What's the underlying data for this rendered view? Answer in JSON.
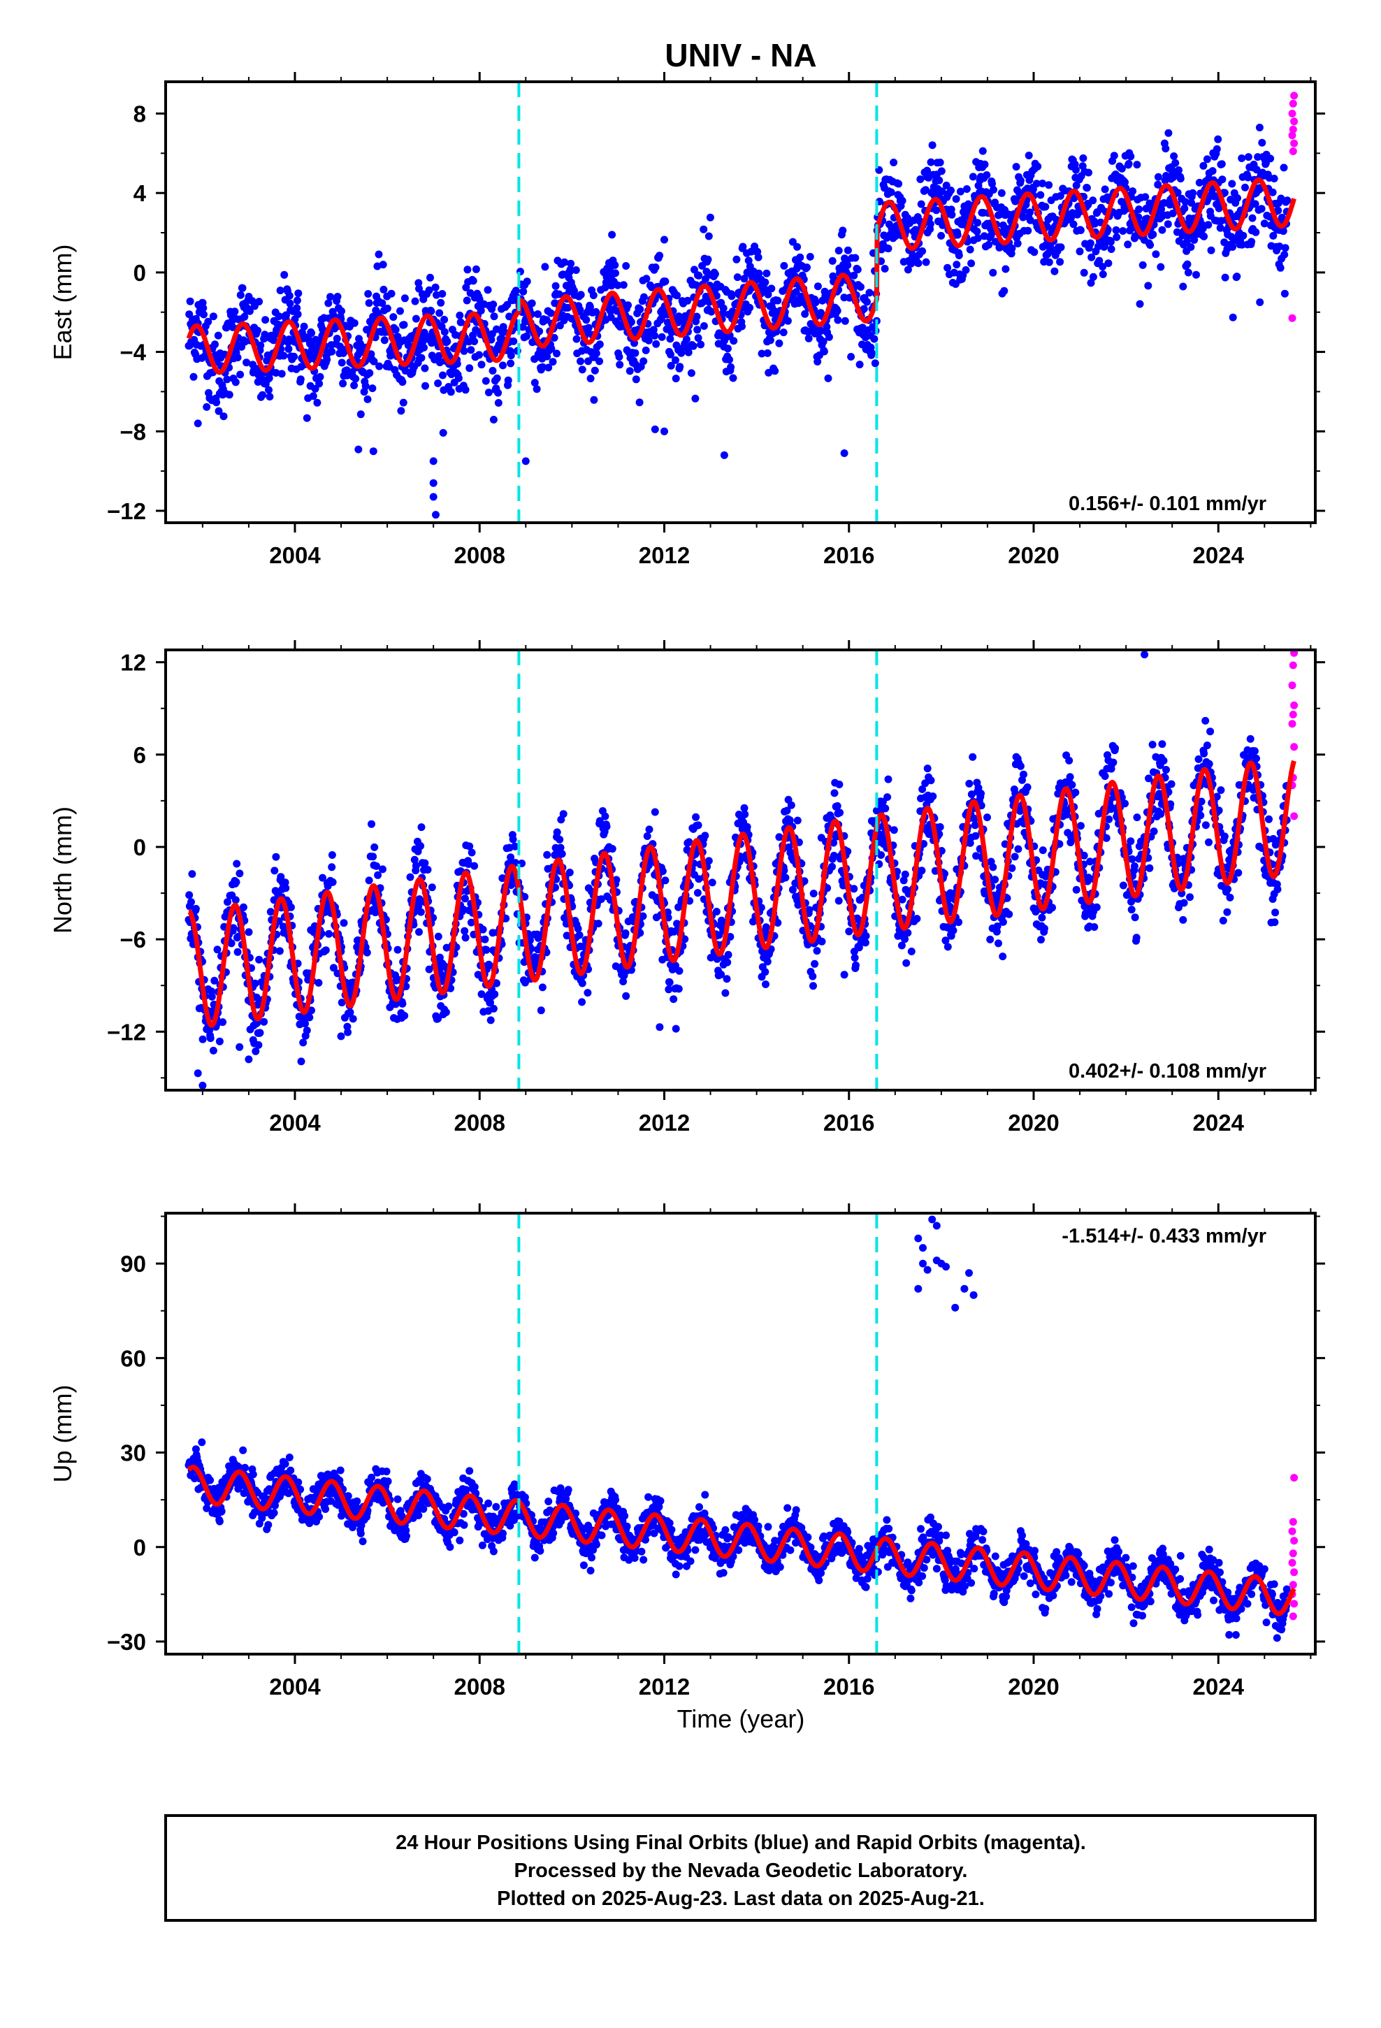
{
  "chart_data": {
    "title": "UNIV - NA",
    "xlabel": "Time (year)",
    "x_ticks": [
      2004,
      2008,
      2012,
      2016,
      2020,
      2024
    ],
    "xlim": [
      2001.2,
      2026.1
    ],
    "vlines": [
      2008.85,
      2016.6
    ],
    "data_span": [
      2001.7,
      2025.64
    ],
    "rapid_start": 2025.5,
    "colors": {
      "final": "#0000ff",
      "rapid": "#ff00ff",
      "fit": "#ff0000",
      "break": "#00e5e5"
    },
    "panels": [
      {
        "key": "east",
        "type": "scatter",
        "ylabel": "East (mm)",
        "ylim": [
          -12.6,
          9.6
        ],
        "yticks": [
          -12,
          -8,
          -4,
          0,
          4,
          8
        ],
        "rate": "0.156+/- 0.101 mm/yr",
        "rate_pos": "bottom-right",
        "model": {
          "segments": [
            {
              "from": 2001.7,
              "to": 2008.85,
              "a": -3.9,
              "b": 2001.7,
              "c": 0.1
            },
            {
              "from": 2008.85,
              "to": 2016.6,
              "a": -2.6,
              "b": 2008.85,
              "c": 0.18
            },
            {
              "from": 2016.6,
              "to": 2025.64,
              "a": 2.3,
              "b": 2016.6,
              "c": 0.14
            }
          ],
          "amp": 1.2,
          "phase": 0.62,
          "noise": 1.2
        },
        "rapid_values": [
          8.9,
          8.5,
          8.0,
          7.6,
          7.2,
          6.9,
          6.5,
          6.1,
          -2.3
        ],
        "outliers": [
          [
            2007.0,
            -10.6
          ],
          [
            2007.0,
            -11.3
          ],
          [
            2007.05,
            -12.2
          ],
          [
            2007.0,
            -9.5
          ],
          [
            2005.7,
            -9.0
          ],
          [
            2001.9,
            -7.6
          ],
          [
            2013.3,
            -9.2
          ],
          [
            2015.9,
            -9.1
          ],
          [
            2009.0,
            -9.5
          ],
          [
            2012.0,
            -8.0
          ],
          [
            2011.8,
            -7.9
          ],
          [
            2024.9,
            -1.5
          ]
        ]
      },
      {
        "key": "north",
        "type": "scatter",
        "ylabel": "North (mm)",
        "ylim": [
          -15.8,
          12.8
        ],
        "yticks": [
          -12,
          -6,
          0,
          6,
          12
        ],
        "rate": "0.402+/- 0.108 mm/yr",
        "rate_pos": "bottom-right",
        "model": {
          "segments": [
            {
              "from": 2001.7,
              "to": 2025.64,
              "a": -8.0,
              "b": 2001.7,
              "c": 0.42
            }
          ],
          "amp": 3.8,
          "phase": 0.45,
          "noise": 1.4
        },
        "rapid_values": [
          12.6,
          11.8,
          10.5,
          9.2,
          8.6,
          8.0,
          6.5,
          4.5,
          4.0,
          2.0
        ],
        "outliers": [
          [
            2001.9,
            -14.7
          ],
          [
            2002.0,
            -15.5
          ],
          [
            2003.0,
            -13.8
          ],
          [
            2002.8,
            -13.0
          ],
          [
            2005.0,
            -12.3
          ],
          [
            2011.9,
            -11.7
          ],
          [
            2015.9,
            -8.3
          ],
          [
            2022.4,
            12.5
          ]
        ]
      },
      {
        "key": "up",
        "type": "scatter",
        "ylabel": "Up (mm)",
        "ylim": [
          -34,
          106
        ],
        "yticks": [
          -30,
          0,
          30,
          60,
          90
        ],
        "rate": "-1.514+/- 0.433 mm/yr",
        "rate_pos": "top-right",
        "model": {
          "segments": [
            {
              "from": 2001.7,
              "to": 2025.64,
              "a": 20.0,
              "b": 2001.7,
              "c": -1.51
            }
          ],
          "amp": 5.5,
          "phase": 0.55,
          "noise": 3.2
        },
        "rapid_values": [
          22,
          8,
          5,
          2,
          -2,
          -5,
          -8,
          -12,
          -15,
          -18,
          -22
        ],
        "outliers": [
          [
            2017.5,
            98
          ],
          [
            2017.6,
            95
          ],
          [
            2017.8,
            104
          ],
          [
            2017.9,
            102
          ],
          [
            2017.6,
            90
          ],
          [
            2017.7,
            88
          ],
          [
            2017.5,
            82
          ],
          [
            2017.9,
            91
          ],
          [
            2018.0,
            90
          ],
          [
            2018.1,
            89
          ],
          [
            2018.3,
            76
          ],
          [
            2018.5,
            82
          ],
          [
            2018.6,
            87
          ],
          [
            2018.7,
            80
          ]
        ]
      }
    ]
  },
  "footer": {
    "line1": "24 Hour Positions Using Final Orbits (blue) and Rapid Orbits (magenta).",
    "line2": "Processed by the Nevada Geodetic Laboratory.",
    "line3": "Plotted on 2025-Aug-23. Last data on 2025-Aug-21."
  }
}
